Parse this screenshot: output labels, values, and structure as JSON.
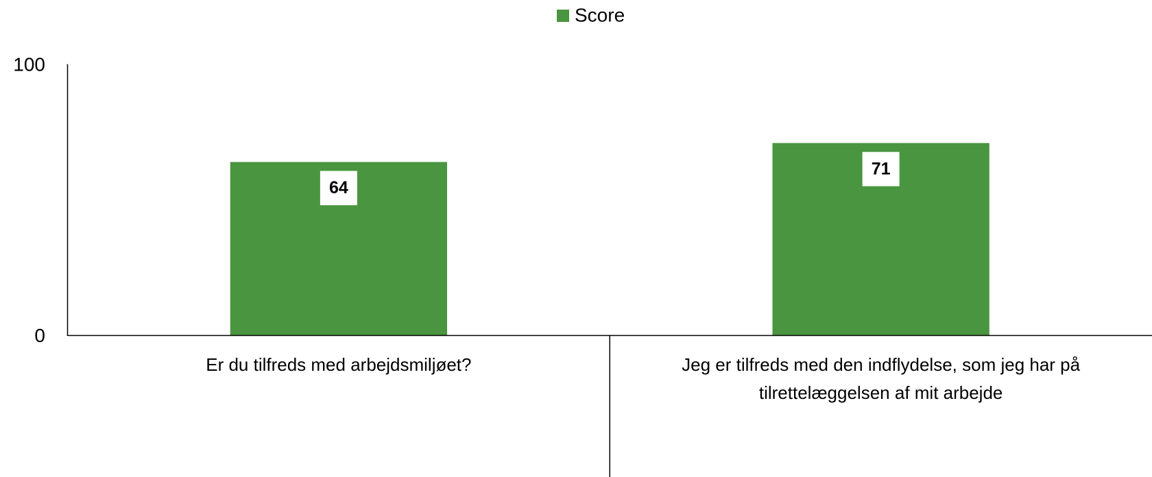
{
  "chart_data": {
    "type": "bar",
    "categories": [
      "Er du tilfreds med arbejdsmiljøet?",
      "Jeg er tilfreds med den indflydelse, som jeg har på tilrettelæggelsen af mit arbejde"
    ],
    "series": [
      {
        "name": "Score",
        "color": "#4a9540",
        "values": [
          64,
          71
        ]
      }
    ],
    "ylim": [
      0,
      100
    ],
    "yticks": [
      0,
      100
    ],
    "grid": false,
    "legend": "top"
  }
}
